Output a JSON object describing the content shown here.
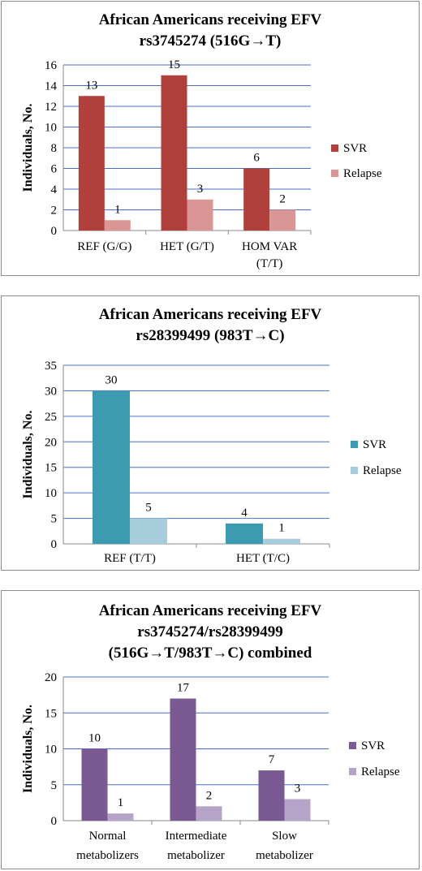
{
  "chart_data": [
    {
      "type": "bar",
      "title": [
        "African Americans receiving EFV",
        "rs3745274 (516G→T)"
      ],
      "ylabel": "Individuals, No.",
      "categories": [
        [
          "REF (G/G)"
        ],
        [
          "HET (G/T)"
        ],
        [
          "HOM VAR",
          "(T/T)"
        ]
      ],
      "series": [
        {
          "name": "SVR",
          "values": [
            13,
            15,
            6
          ],
          "color": "#b13f3b"
        },
        {
          "name": "Relapse",
          "values": [
            1,
            3,
            2
          ],
          "color": "#d99694"
        }
      ],
      "ylim": [
        0,
        16
      ],
      "yticks": [
        0,
        2,
        4,
        6,
        8,
        10,
        12,
        14,
        16
      ],
      "gridline_color": "#4a6fc6",
      "legend_position": "right"
    },
    {
      "type": "bar",
      "title": [
        "African Americans receiving EFV",
        "rs28399499 (983T→C)"
      ],
      "ylabel": "Individuals, No.",
      "categories": [
        [
          "REF (T/T)"
        ],
        [
          "HET (T/C)"
        ]
      ],
      "series": [
        {
          "name": "SVR",
          "values": [
            30,
            4
          ],
          "color": "#3d9bb1"
        },
        {
          "name": "Relapse",
          "values": [
            5,
            1
          ],
          "color": "#a7cddd"
        }
      ],
      "ylim": [
        0,
        35
      ],
      "yticks": [
        0,
        5,
        10,
        15,
        20,
        25,
        30,
        35
      ],
      "gridline_color": "#4a6fc6",
      "legend_position": "right"
    },
    {
      "type": "bar",
      "title": [
        "African Americans receiving EFV",
        "rs3745274/rs28399499",
        "(516G→T/983T→C) combined"
      ],
      "ylabel": "Individuals, No.",
      "categories": [
        [
          "Normal",
          "metabolizers"
        ],
        [
          "Intermediate",
          "metabolizer"
        ],
        [
          "Slow",
          "metabolizer"
        ]
      ],
      "series": [
        {
          "name": "SVR",
          "values": [
            10,
            17,
            7
          ],
          "color": "#7b5a93"
        },
        {
          "name": "Relapse",
          "values": [
            1,
            2,
            3
          ],
          "color": "#b6a4c8"
        }
      ],
      "ylim": [
        0,
        20
      ],
      "yticks": [
        0,
        5,
        10,
        15,
        20
      ],
      "gridline_color": "#4a6fc6",
      "legend_position": "right"
    }
  ]
}
